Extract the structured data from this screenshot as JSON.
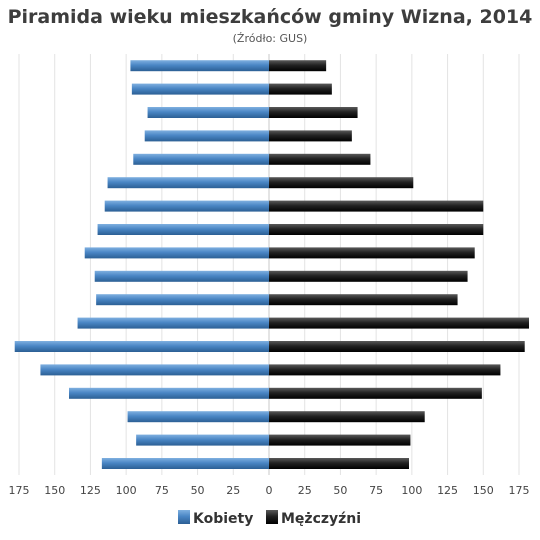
{
  "chart_data": {
    "type": "bar",
    "orientation": "horizontal",
    "title": "Piramida wieku mieszkańców gminy Wizna, 2014",
    "subtitle": "(Źródło: GUS)",
    "xlim": [
      -175,
      175
    ],
    "x_ticks": [
      -175,
      -150,
      -125,
      -100,
      -75,
      -50,
      -25,
      0,
      25,
      50,
      75,
      100,
      125,
      150,
      175
    ],
    "x_tick_labels": [
      "175",
      "150",
      "125",
      "100",
      "75",
      "50",
      "25",
      "0",
      "25",
      "50",
      "75",
      "100",
      "125",
      "150",
      "175"
    ],
    "grid": true,
    "legend_position": "bottom",
    "series": [
      {
        "name": "Kobiety",
        "color": "#4a86c5",
        "values": [
          97,
          96,
          85,
          87,
          95,
          113,
          115,
          120,
          129,
          122,
          121,
          134,
          178,
          160,
          140,
          99,
          93,
          117
        ]
      },
      {
        "name": "Mężczyźni",
        "color": "#222222",
        "values": [
          40,
          44,
          62,
          58,
          71,
          101,
          150,
          150,
          144,
          139,
          132,
          182,
          179,
          162,
          149,
          109,
          99,
          98
        ]
      }
    ]
  }
}
